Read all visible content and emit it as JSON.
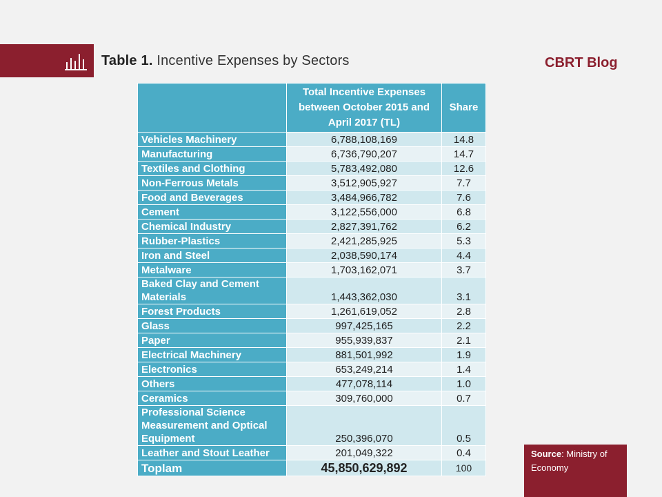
{
  "header": {
    "title_prefix": "Table 1.",
    "title_text": " Incentive Expenses by Sectors",
    "brand": "CBRT Blog",
    "band_color": "#8b1f2e",
    "icon": "bar-chart-icon"
  },
  "table": {
    "col_headers": [
      "",
      "Total Incentive Expenses between October 2015 and April 2017 (TL)",
      "Share"
    ],
    "rows": [
      {
        "sector": "Vehicles Machinery",
        "amount": "6,788,108,169",
        "share": "14.8"
      },
      {
        "sector": "Manufacturing",
        "amount": "6,736,790,207",
        "share": "14.7"
      },
      {
        "sector": "Textiles and Clothing",
        "amount": "5,783,492,080",
        "share": "12.6"
      },
      {
        "sector": "Non-Ferrous Metals",
        "amount": "3,512,905,927",
        "share": "7.7"
      },
      {
        "sector": "Food and Beverages",
        "amount": "3,484,966,782",
        "share": "7.6"
      },
      {
        "sector": "Cement",
        "amount": "3,122,556,000",
        "share": "6.8"
      },
      {
        "sector": "Chemical Industry",
        "amount": "2,827,391,762",
        "share": "6.2"
      },
      {
        "sector": "Rubber-Plastics",
        "amount": "2,421,285,925",
        "share": "5.3"
      },
      {
        "sector": "Iron and Steel",
        "amount": "2,038,590,174",
        "share": "4.4"
      },
      {
        "sector": "Metalware",
        "amount": "1,703,162,071",
        "share": "3.7"
      },
      {
        "sector": "Baked Clay and Cement Materials",
        "amount": "1,443,362,030",
        "share": "3.1"
      },
      {
        "sector": "Forest Products",
        "amount": "1,261,619,052",
        "share": "2.8"
      },
      {
        "sector": "Glass",
        "amount": "997,425,165",
        "share": "2.2"
      },
      {
        "sector": "Paper",
        "amount": "955,939,837",
        "share": "2.1"
      },
      {
        "sector": "Electrical Machinery",
        "amount": "881,501,992",
        "share": "1.9"
      },
      {
        "sector": "Electronics",
        "amount": "653,249,214",
        "share": "1.4"
      },
      {
        "sector": "Others",
        "amount": "477,078,114",
        "share": "1.0"
      },
      {
        "sector": "Ceramics",
        "amount": "309,760,000",
        "share": "0.7"
      },
      {
        "sector": "Professional Science Measurement and Optical Equipment",
        "amount": "250,396,070",
        "share": "0.5"
      },
      {
        "sector": "Leather and Stout Leather",
        "amount": "201,049,322",
        "share": "0.4"
      }
    ],
    "total": {
      "label": "Toplam",
      "amount": "45,850,629,892",
      "share": "100"
    }
  },
  "source": {
    "label": "Source",
    "text": ": Ministry of Economy"
  }
}
